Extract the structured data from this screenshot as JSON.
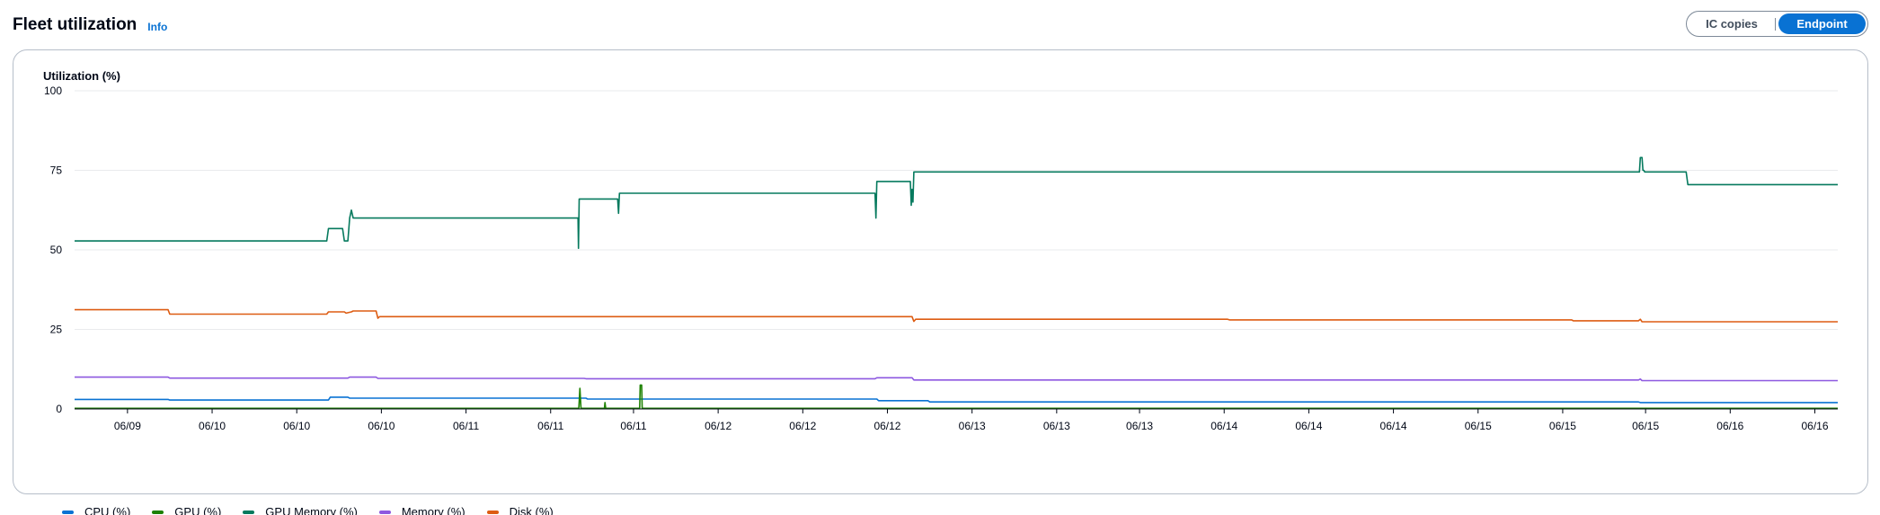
{
  "header": {
    "title": "Fleet utilization",
    "info": "Info"
  },
  "toggle": {
    "options": [
      "IC copies",
      "Endpoint"
    ],
    "selected": "Endpoint"
  },
  "colors": {
    "cpu": "#0972d3",
    "gpu": "#1d8102",
    "gpu_memory": "#067a5e",
    "memory": "#8d58e0",
    "disk": "#dd5c12",
    "grid": "#e9ebed",
    "axis": "#000716"
  },
  "chart_data": {
    "type": "line",
    "ylabel": "Utilization (%)",
    "ylim": [
      0,
      100
    ],
    "yticks": [
      "0",
      "25",
      "50",
      "75",
      "100"
    ],
    "xlim": [
      0,
      1
    ],
    "xticks": [
      {
        "x": 0.03,
        "label": "06/09"
      },
      {
        "x": 0.078,
        "label": "06/10"
      },
      {
        "x": 0.126,
        "label": "06/10"
      },
      {
        "x": 0.174,
        "label": "06/10"
      },
      {
        "x": 0.222,
        "label": "06/11"
      },
      {
        "x": 0.27,
        "label": "06/11"
      },
      {
        "x": 0.317,
        "label": "06/11"
      },
      {
        "x": 0.365,
        "label": "06/12"
      },
      {
        "x": 0.413,
        "label": "06/12"
      },
      {
        "x": 0.461,
        "label": "06/12"
      },
      {
        "x": 0.509,
        "label": "06/13"
      },
      {
        "x": 0.557,
        "label": "06/13"
      },
      {
        "x": 0.604,
        "label": "06/13"
      },
      {
        "x": 0.652,
        "label": "06/14"
      },
      {
        "x": 0.7,
        "label": "06/14"
      },
      {
        "x": 0.748,
        "label": "06/14"
      },
      {
        "x": 0.796,
        "label": "06/15"
      },
      {
        "x": 0.844,
        "label": "06/15"
      },
      {
        "x": 0.891,
        "label": "06/15"
      },
      {
        "x": 0.939,
        "label": "06/16"
      },
      {
        "x": 0.987,
        "label": "06/16"
      }
    ],
    "series": [
      {
        "name": "CPU (%)",
        "color_key": "cpu",
        "points": [
          [
            0,
            3.0
          ],
          [
            0.053,
            3.0
          ],
          [
            0.054,
            2.8
          ],
          [
            0.144,
            2.8
          ],
          [
            0.145,
            3.7
          ],
          [
            0.155,
            3.7
          ],
          [
            0.156,
            3.4
          ],
          [
            0.29,
            3.4
          ],
          [
            0.291,
            3.1
          ],
          [
            0.455,
            3.1
          ],
          [
            0.456,
            2.6
          ],
          [
            0.484,
            2.6
          ],
          [
            0.485,
            2.2
          ],
          [
            0.887,
            2.2
          ],
          [
            0.888,
            2.0
          ],
          [
            1,
            2.0
          ]
        ]
      },
      {
        "name": "GPU (%)",
        "color_key": "gpu",
        "points": [
          [
            0,
            0.2
          ],
          [
            0.286,
            0.2
          ],
          [
            0.2866,
            6.5
          ],
          [
            0.2872,
            0.2
          ],
          [
            0.3005,
            0.2
          ],
          [
            0.3008,
            2.0
          ],
          [
            0.3012,
            0.2
          ],
          [
            0.3205,
            0.2
          ],
          [
            0.3208,
            7.5
          ],
          [
            0.3216,
            7.5
          ],
          [
            0.3219,
            0.2
          ],
          [
            1,
            0.2
          ]
        ]
      },
      {
        "name": "GPU Memory (%)",
        "color_key": "gpu_memory",
        "points": [
          [
            0,
            52.8
          ],
          [
            0.143,
            52.8
          ],
          [
            0.144,
            56.7
          ],
          [
            0.152,
            56.7
          ],
          [
            0.153,
            52.8
          ],
          [
            0.155,
            52.8
          ],
          [
            0.156,
            60.0
          ],
          [
            0.157,
            62.5
          ],
          [
            0.158,
            60.0
          ],
          [
            0.2855,
            60.0
          ],
          [
            0.2858,
            50.5
          ],
          [
            0.2862,
            66.0
          ],
          [
            0.308,
            66.0
          ],
          [
            0.3085,
            61.5
          ],
          [
            0.309,
            67.8
          ],
          [
            0.454,
            67.8
          ],
          [
            0.4545,
            60.0
          ],
          [
            0.455,
            71.5
          ],
          [
            0.474,
            71.5
          ],
          [
            0.4745,
            64.0
          ],
          [
            0.475,
            69.0
          ],
          [
            0.4755,
            65.0
          ],
          [
            0.476,
            74.5
          ],
          [
            0.8875,
            74.5
          ],
          [
            0.888,
            79.0
          ],
          [
            0.889,
            79.0
          ],
          [
            0.8895,
            75.0
          ],
          [
            0.89,
            75.0
          ],
          [
            0.8905,
            74.5
          ],
          [
            0.914,
            74.5
          ],
          [
            0.915,
            70.5
          ],
          [
            1,
            70.5
          ]
        ]
      },
      {
        "name": "Memory (%)",
        "color_key": "memory",
        "points": [
          [
            0,
            10.0
          ],
          [
            0.053,
            10.0
          ],
          [
            0.054,
            9.7
          ],
          [
            0.155,
            9.7
          ],
          [
            0.156,
            10.0
          ],
          [
            0.171,
            10.0
          ],
          [
            0.172,
            9.6
          ],
          [
            0.289,
            9.6
          ],
          [
            0.29,
            9.5
          ],
          [
            0.454,
            9.5
          ],
          [
            0.455,
            9.8
          ],
          [
            0.475,
            9.8
          ],
          [
            0.476,
            9.1
          ],
          [
            0.887,
            9.1
          ],
          [
            0.888,
            9.4
          ],
          [
            0.889,
            8.9
          ],
          [
            1,
            8.9
          ]
        ]
      },
      {
        "name": "Disk (%)",
        "color_key": "disk",
        "points": [
          [
            0,
            31.2
          ],
          [
            0.053,
            31.2
          ],
          [
            0.054,
            29.8
          ],
          [
            0.143,
            29.8
          ],
          [
            0.144,
            30.5
          ],
          [
            0.153,
            30.5
          ],
          [
            0.154,
            30.1
          ],
          [
            0.157,
            30.5
          ],
          [
            0.158,
            30.8
          ],
          [
            0.171,
            30.8
          ],
          [
            0.172,
            28.5
          ],
          [
            0.173,
            29.0
          ],
          [
            0.455,
            29.0
          ],
          [
            0.475,
            29.0
          ],
          [
            0.476,
            27.5
          ],
          [
            0.477,
            28.2
          ],
          [
            0.654,
            28.2
          ],
          [
            0.655,
            28.0
          ],
          [
            0.849,
            28.0
          ],
          [
            0.85,
            27.7
          ],
          [
            0.887,
            27.7
          ],
          [
            0.888,
            28.2
          ],
          [
            0.889,
            27.4
          ],
          [
            1,
            27.4
          ]
        ]
      }
    ]
  },
  "legend": [
    "CPU (%)",
    "GPU (%)",
    "GPU Memory (%)",
    "Memory (%)",
    "Disk (%)"
  ]
}
